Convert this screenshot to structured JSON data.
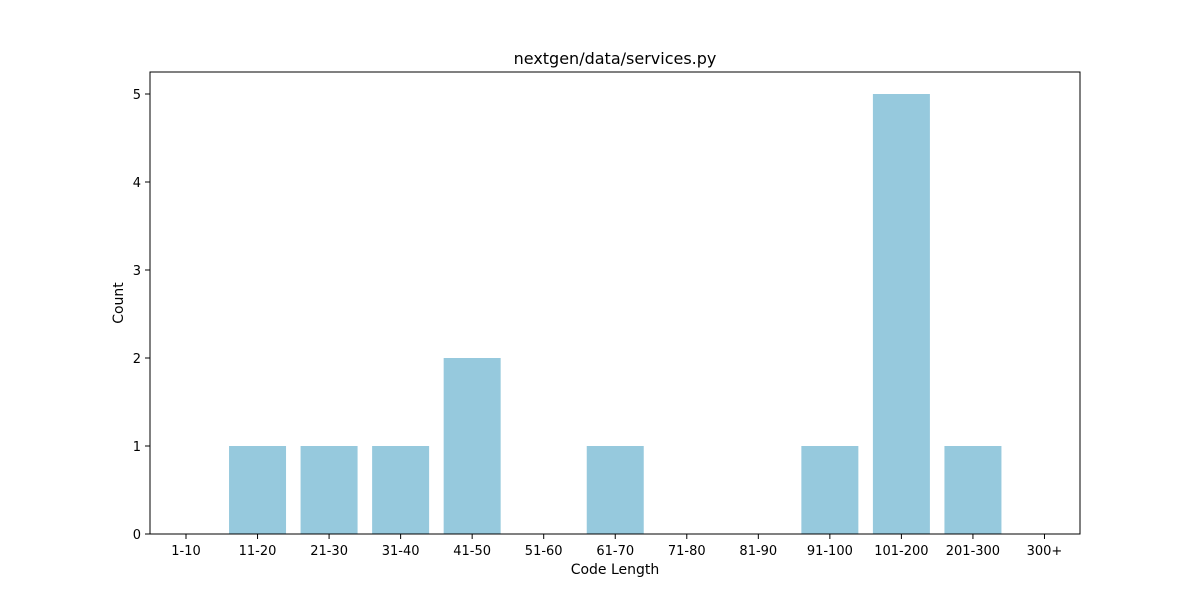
{
  "chart_data": {
    "type": "bar",
    "title": "nextgen/data/services.py",
    "xlabel": "Code Length",
    "ylabel": "Count",
    "categories": [
      "1-10",
      "11-20",
      "21-30",
      "31-40",
      "41-50",
      "51-60",
      "61-70",
      "71-80",
      "81-90",
      "91-100",
      "101-200",
      "201-300",
      "300+"
    ],
    "values": [
      0,
      1,
      1,
      1,
      2,
      0,
      1,
      0,
      0,
      1,
      5,
      1,
      0
    ],
    "ylim": [
      0,
      5.25
    ],
    "yticks": [
      0,
      1,
      2,
      3,
      4,
      5
    ],
    "bar_color": "#96c9dd",
    "grid": false,
    "legend": false
  }
}
